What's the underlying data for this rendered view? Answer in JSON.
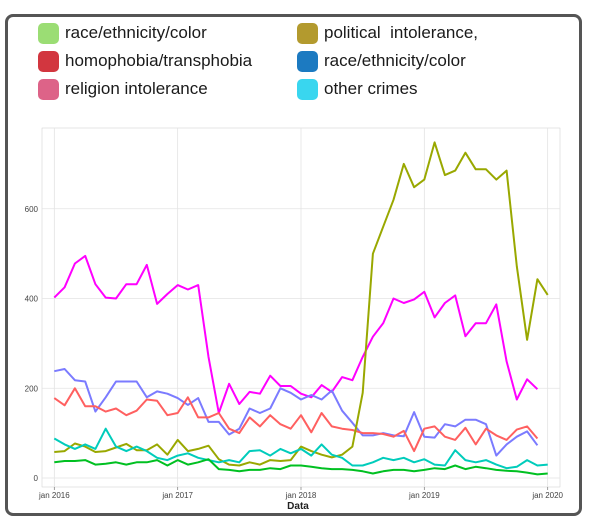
{
  "legend": [
    {
      "label": "race/ethnicity/color",
      "color": "#9BDD74"
    },
    {
      "label": "political  intolerance,",
      "color": "#B39A2E"
    },
    {
      "label": "homophobia/transphobia",
      "color": "#D2363F"
    },
    {
      "label": "race/ethnicity/color",
      "color": "#1C7AC1"
    },
    {
      "label": "religion intolerance",
      "color": "#DD6388"
    },
    {
      "label": "other crimes",
      "color": "#39D6EF"
    }
  ],
  "chart_data": {
    "type": "line",
    "xlabel": "Data",
    "ylabel": "",
    "x_ticks": [
      "jan 2016",
      "jan 2017",
      "jan 2018",
      "jan 2019",
      "jan 2020"
    ],
    "y_ticks": [
      0,
      200,
      400,
      600
    ],
    "ylim": [
      -20,
      780
    ],
    "xlim": [
      2015.9,
      2020.1
    ],
    "grid": true,
    "x_start": 2016.0,
    "x_step_months": 1,
    "series": [
      {
        "color": "#FF00FF",
        "values": [
          402,
          425,
          478,
          495,
          432,
          402,
          400,
          432,
          432,
          475,
          388,
          410,
          430,
          420,
          430,
          270,
          145,
          210,
          165,
          192,
          188,
          228,
          205,
          205,
          188,
          180,
          207,
          192,
          225,
          218,
          270,
          315,
          345,
          400,
          390,
          398,
          415,
          358,
          390,
          407,
          316,
          345,
          345,
          387,
          260,
          175,
          220,
          198
        ]
      },
      {
        "color": "#7B7BFF",
        "values": [
          238,
          243,
          218,
          215,
          148,
          180,
          215,
          215,
          215,
          180,
          193,
          188,
          178,
          163,
          178,
          125,
          125,
          97,
          110,
          155,
          145,
          155,
          200,
          190,
          175,
          185,
          175,
          195,
          150,
          123,
          95,
          95,
          100,
          95,
          93,
          147,
          92,
          90,
          120,
          115,
          130,
          130,
          120,
          50,
          75,
          92,
          104,
          73
        ]
      },
      {
        "color": "#FF6060",
        "values": [
          178,
          162,
          200,
          160,
          160,
          148,
          155,
          140,
          150,
          175,
          172,
          140,
          145,
          180,
          135,
          135,
          145,
          110,
          100,
          135,
          115,
          140,
          120,
          110,
          140,
          102,
          145,
          115,
          110,
          107,
          100,
          100,
          98,
          92,
          105,
          60,
          110,
          115,
          92,
          85,
          112,
          75,
          110,
          95,
          85,
          108,
          115,
          88
        ]
      },
      {
        "color": "#99A800",
        "values": [
          58,
          60,
          77,
          70,
          58,
          60,
          68,
          76,
          62,
          62,
          75,
          52,
          85,
          60,
          65,
          72,
          42,
          30,
          28,
          35,
          30,
          40,
          38,
          40,
          70,
          60,
          52,
          46,
          52,
          70,
          190,
          500,
          560,
          620,
          700,
          648,
          665,
          748,
          675,
          685,
          725,
          688,
          688,
          665,
          685,
          472,
          308,
          443,
          408
        ]
      },
      {
        "color": "#00CCBB",
        "values": [
          88,
          75,
          65,
          75,
          65,
          110,
          70,
          60,
          70,
          60,
          45,
          40,
          50,
          55,
          45,
          40,
          35,
          40,
          35,
          60,
          62,
          50,
          65,
          55,
          65,
          50,
          75,
          52,
          45,
          28,
          28,
          35,
          45,
          40,
          45,
          35,
          42,
          30,
          28,
          62,
          40,
          35,
          40,
          30,
          22,
          25,
          40,
          28,
          30
        ]
      },
      {
        "color": "#00C021",
        "values": [
          35,
          38,
          38,
          40,
          30,
          32,
          35,
          30,
          35,
          35,
          40,
          28,
          40,
          30,
          35,
          42,
          20,
          18,
          15,
          18,
          18,
          22,
          20,
          28,
          28,
          25,
          22,
          20,
          20,
          18,
          15,
          10,
          15,
          18,
          18,
          15,
          18,
          22,
          20,
          28,
          20,
          25,
          22,
          18,
          16,
          15,
          12,
          8,
          10
        ]
      }
    ]
  }
}
